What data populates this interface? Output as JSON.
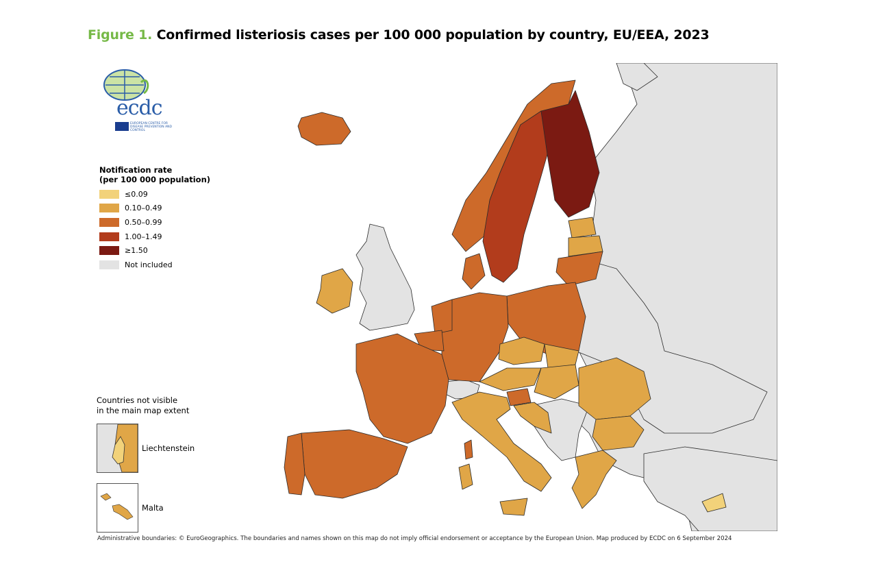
{
  "figure": {
    "number": "Figure 1.",
    "title": "Confirmed listeriosis cases per 100 000 population by country, EU/EEA, 2023"
  },
  "logo": {
    "wordmark": "ecdc",
    "org_name": "European Centre for Disease Prevention and Control"
  },
  "legend": {
    "title": "Notification rate\n(per 100 000 population)",
    "items": [
      {
        "label": "≤0.09",
        "color": "#f2d27a"
      },
      {
        "label": "0.10–0.49",
        "color": "#e0a647"
      },
      {
        "label": "0.50–0.99",
        "color": "#cd6a2a"
      },
      {
        "label": "1.00–1.49",
        "color": "#b23c1c"
      },
      {
        "label": "≥1.50",
        "color": "#7b1a12"
      },
      {
        "label": "Not included",
        "color": "#e3e3e3"
      }
    ]
  },
  "insets": {
    "heading": "Countries not visible\nin the main map extent",
    "liechtenstein": {
      "label": "Liechtenstein"
    },
    "malta": {
      "label": "Malta"
    }
  },
  "footnote": "Administrative boundaries: © EuroGeographics. The boundaries and names shown on this map do not imply official endorsement or acceptance by the European Union. Map produced by ECDC on 6 September 2024",
  "colors": {
    "sea": "#ffffff",
    "not_included": "#e3e3e3",
    "border": "#1a1a1a"
  }
}
